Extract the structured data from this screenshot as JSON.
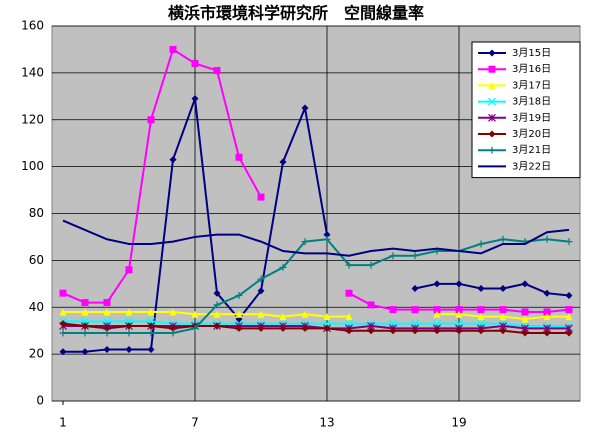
{
  "chart_data": {
    "type": "line",
    "title": "横浜市環境科学研究所　空間線量率",
    "x": [
      1,
      2,
      3,
      4,
      5,
      6,
      7,
      8,
      9,
      10,
      11,
      12,
      13,
      14,
      15,
      16,
      17,
      18,
      19,
      20,
      21,
      22,
      23,
      24
    ],
    "xlim": [
      0.5,
      24.5
    ],
    "xticks": [
      1,
      7,
      13,
      19
    ],
    "ylim": [
      0,
      160
    ],
    "yticks": [
      0,
      20,
      40,
      60,
      80,
      100,
      120,
      140,
      160
    ],
    "grid": true,
    "legend": "upper right",
    "series": [
      {
        "name": "3月15日",
        "color": "#000080",
        "marker": "diamond",
        "values": [
          21,
          21,
          22,
          22,
          22,
          103,
          129,
          46,
          35,
          47,
          102,
          125,
          71,
          null,
          null,
          null,
          48,
          50,
          50,
          48,
          48,
          50,
          46,
          45
        ]
      },
      {
        "name": "3月16日",
        "color": "#FF00FF",
        "marker": "square",
        "values": [
          46,
          42,
          42,
          56,
          120,
          150,
          144,
          141,
          104,
          87,
          null,
          null,
          null,
          46,
          41,
          39,
          39,
          39,
          39,
          39,
          39,
          38,
          38,
          39
        ]
      },
      {
        "name": "3月17日",
        "color": "#FFFF00",
        "marker": "triangle",
        "values": [
          38,
          38,
          38,
          38,
          38,
          38,
          37,
          37,
          37,
          37,
          36,
          37,
          36,
          36,
          null,
          null,
          null,
          37,
          37,
          36,
          36,
          35,
          36,
          36
        ]
      },
      {
        "name": "3月18日",
        "color": "#00FFFF",
        "marker": "x",
        "values": [
          34,
          34,
          34,
          34,
          34,
          33,
          33,
          33,
          33,
          33,
          33,
          33,
          33,
          33,
          33,
          33,
          33,
          33,
          33,
          33,
          33,
          32,
          32,
          32
        ]
      },
      {
        "name": "3月19日",
        "color": "#800080",
        "marker": "star",
        "values": [
          32,
          32,
          32,
          32,
          32,
          32,
          32,
          32,
          32,
          32,
          32,
          32,
          31,
          31,
          32,
          31,
          31,
          31,
          31,
          31,
          32,
          31,
          31,
          31
        ]
      },
      {
        "name": "3月20日",
        "color": "#800000",
        "marker": "diamond",
        "values": [
          33,
          32,
          31,
          32,
          32,
          31,
          32,
          32,
          31,
          31,
          31,
          31,
          31,
          30,
          30,
          30,
          30,
          30,
          30,
          30,
          30,
          29,
          29,
          29
        ]
      },
      {
        "name": "3月21日",
        "color": "#008080",
        "marker": "plus",
        "values": [
          29,
          29,
          29,
          29,
          29,
          29,
          31,
          41,
          45,
          52,
          57,
          68,
          69,
          58,
          58,
          62,
          62,
          64,
          64,
          67,
          69,
          68,
          69,
          68
        ]
      },
      {
        "name": "3月22日",
        "color": "#000080",
        "marker": "none",
        "values": [
          77,
          73,
          69,
          67,
          67,
          68,
          70,
          71,
          71,
          68,
          64,
          63,
          63,
          62,
          64,
          65,
          64,
          65,
          64,
          63,
          67,
          67,
          72,
          73
        ]
      }
    ]
  }
}
